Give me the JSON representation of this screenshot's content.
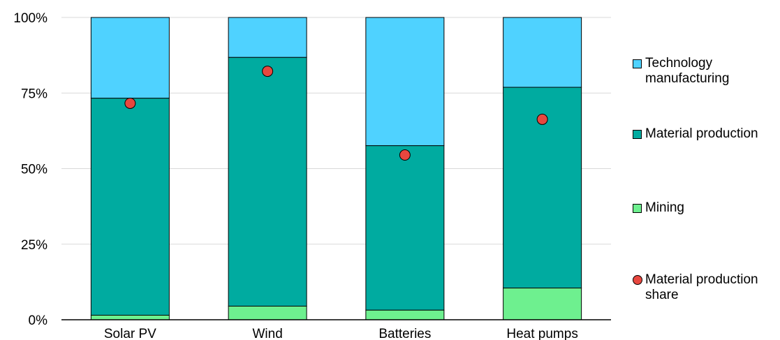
{
  "chart_data": {
    "type": "bar",
    "stacked": true,
    "categories": [
      "Solar PV",
      "Wind",
      "Batteries",
      "Heat pumps"
    ],
    "series": [
      {
        "name": "Mining",
        "color": "#6ef08f",
        "values": [
          1.5,
          4.5,
          3.2,
          10.5
        ]
      },
      {
        "name": "Material production",
        "color": "#00aba0",
        "values": [
          71.8,
          82.3,
          54.4,
          66.4
        ]
      },
      {
        "name": "Technology manufacturing",
        "color": "#4fd2ff",
        "values": [
          26.7,
          13.2,
          42.4,
          23.1
        ]
      }
    ],
    "points": {
      "name": "Material production share",
      "color": "#e8473f",
      "values": [
        71.6,
        82.2,
        54.5,
        66.3
      ]
    },
    "ylim": [
      0,
      100
    ],
    "yticks": [
      "0%",
      "25%",
      "50%",
      "75%",
      "100%"
    ],
    "ytick_values": [
      0,
      25,
      50,
      75,
      100
    ],
    "grid": "horizontal",
    "legend": {
      "placement": "right",
      "items": [
        {
          "label": "Technology manufacturing",
          "line1": "Technology",
          "line2": "manufacturing",
          "marker": "square",
          "color": "#4fd2ff"
        },
        {
          "label": "Material production",
          "line1": "Material production",
          "line2": "",
          "marker": "square",
          "color": "#00aba0"
        },
        {
          "label": "Mining",
          "line1": "Mining",
          "line2": "",
          "marker": "square",
          "color": "#6ef08f"
        },
        {
          "label": "Material production share",
          "line1": "Material production",
          "line2": "share",
          "marker": "circle",
          "color": "#e8473f"
        }
      ]
    },
    "title": "",
    "xlabel": "",
    "ylabel": ""
  }
}
